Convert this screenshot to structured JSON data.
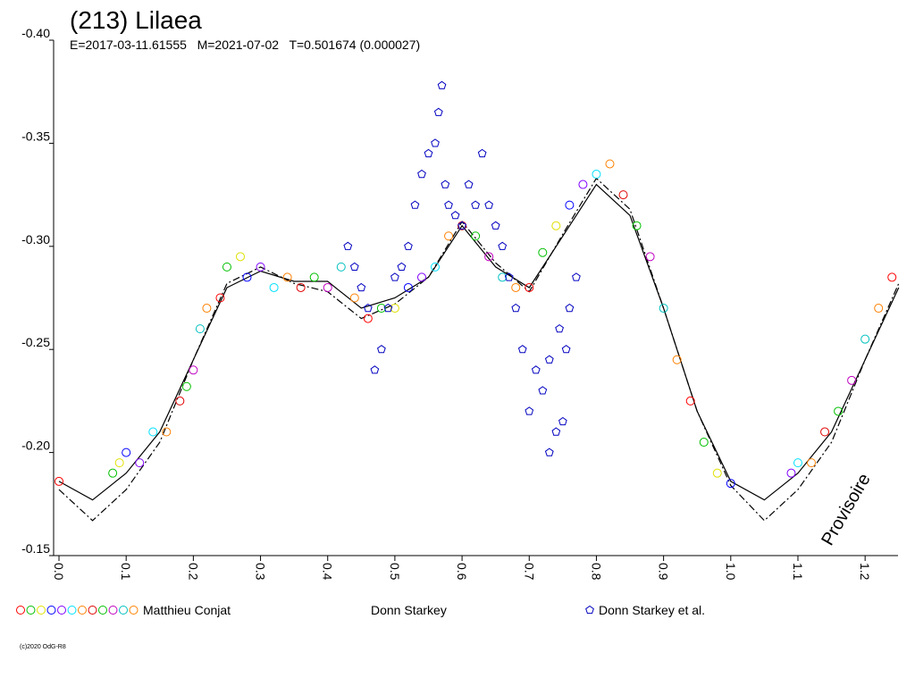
{
  "chart_data": {
    "type": "scatter",
    "title": "(213) Lilaea",
    "subtitle": "E=2017-03-11.61555   M=2021-07-02   T=0.501674 (0.000027)",
    "annotation": "Provisoire",
    "footer": "(c)2020 OdG-R8",
    "xlim": [
      -0.008,
      1.249
    ],
    "ylim": [
      -0.4,
      -0.15
    ],
    "y_reversed": true,
    "xticks": [
      {
        "value": 0.0,
        "label": "0.0"
      },
      0.1,
      0.2,
      0.3,
      0.4,
      0.5,
      0.6,
      0.7,
      0.8,
      0.9,
      {
        "value": 1.0,
        "label": "1.0"
      },
      1.1,
      1.2
    ],
    "yticks": [
      {
        "value": -0.4,
        "label": "-0.40"
      },
      -0.35,
      {
        "value": -0.3,
        "label": "-0.30"
      },
      -0.25,
      {
        "value": -0.2,
        "label": "-0.20"
      },
      -0.15
    ],
    "series": [
      {
        "name": "Matthieu Conjat",
        "marker_colors": [
          "#ff0000",
          "#00c000",
          "#e0e000",
          "#0000ff",
          "#8000ff",
          "#00e0ff",
          "#ff8000",
          "#e00000",
          "#00c000",
          "#c000c0",
          "#00c0c0",
          "#ff8000"
        ],
        "x": [
          0.0,
          0.08,
          0.09,
          0.1,
          0.12,
          0.14,
          0.16,
          0.18,
          0.19,
          0.2,
          0.21,
          0.22,
          0.24,
          0.25,
          0.27,
          0.28,
          0.3,
          0.32,
          0.34,
          0.36,
          0.38,
          0.4,
          0.42,
          0.44,
          0.46,
          0.48,
          0.5,
          0.52,
          0.54,
          0.56,
          0.58,
          0.6,
          0.62,
          0.64,
          0.66,
          0.68,
          0.7,
          0.72,
          0.74,
          0.76,
          0.78,
          0.8,
          0.82,
          0.84,
          0.86,
          0.88,
          0.9,
          0.92,
          0.94,
          0.96,
          0.98,
          1.0,
          1.09,
          1.1,
          1.12,
          1.14,
          1.16,
          1.18,
          1.2,
          1.22,
          1.24
        ],
        "values": [
          -0.186,
          -0.19,
          -0.195,
          -0.2,
          -0.195,
          -0.21,
          -0.21,
          -0.225,
          -0.232,
          -0.24,
          -0.26,
          -0.27,
          -0.275,
          -0.29,
          -0.295,
          -0.285,
          -0.29,
          -0.28,
          -0.285,
          -0.28,
          -0.285,
          -0.28,
          -0.29,
          -0.275,
          -0.265,
          -0.27,
          -0.27,
          -0.28,
          -0.285,
          -0.29,
          -0.305,
          -0.31,
          -0.305,
          -0.295,
          -0.285,
          -0.28,
          -0.28,
          -0.297,
          -0.31,
          -0.32,
          -0.33,
          -0.335,
          -0.34,
          -0.325,
          -0.31,
          -0.295,
          -0.27,
          -0.245,
          -0.225,
          -0.205,
          -0.19,
          -0.185,
          -0.19,
          -0.195,
          -0.195,
          -0.21,
          -0.22,
          -0.235,
          -0.255,
          -0.27,
          -0.285
        ]
      },
      {
        "name": "Donn Starkey",
        "x": [],
        "values": []
      },
      {
        "name": "Donn Starkey et al.",
        "color": "#0000c0",
        "x": [
          0.47,
          0.48,
          0.49,
          0.5,
          0.51,
          0.52,
          0.53,
          0.54,
          0.55,
          0.56,
          0.565,
          0.57,
          0.575,
          0.58,
          0.59,
          0.6,
          0.61,
          0.62,
          0.63,
          0.64,
          0.65,
          0.66,
          0.67,
          0.68,
          0.69,
          0.7,
          0.71,
          0.72,
          0.73,
          0.74,
          0.745,
          0.75,
          0.76,
          0.77,
          0.44,
          0.45,
          0.46,
          0.43,
          0.73,
          0.755
        ],
        "values": [
          -0.24,
          -0.25,
          -0.27,
          -0.285,
          -0.29,
          -0.3,
          -0.32,
          -0.335,
          -0.345,
          -0.35,
          -0.365,
          -0.378,
          -0.33,
          -0.32,
          -0.315,
          -0.31,
          -0.33,
          -0.32,
          -0.345,
          -0.32,
          -0.31,
          -0.3,
          -0.285,
          -0.27,
          -0.25,
          -0.22,
          -0.24,
          -0.23,
          -0.245,
          -0.21,
          -0.26,
          -0.215,
          -0.27,
          -0.285,
          -0.29,
          -0.28,
          -0.27,
          -0.3,
          -0.2,
          -0.25
        ]
      }
    ],
    "fits": [
      {
        "style": "solid",
        "color": "#000000",
        "x": [
          0.0,
          0.05,
          0.1,
          0.15,
          0.2,
          0.25,
          0.3,
          0.35,
          0.4,
          0.45,
          0.5,
          0.55,
          0.6,
          0.65,
          0.7,
          0.75,
          0.8,
          0.85,
          0.9,
          0.95,
          1.0,
          1.05,
          1.1,
          1.15,
          1.2,
          1.25
        ],
        "values": [
          -0.186,
          -0.177,
          -0.19,
          -0.21,
          -0.245,
          -0.28,
          -0.288,
          -0.283,
          -0.283,
          -0.27,
          -0.275,
          -0.285,
          -0.31,
          -0.29,
          -0.28,
          -0.305,
          -0.33,
          -0.315,
          -0.27,
          -0.22,
          -0.186,
          -0.177,
          -0.19,
          -0.21,
          -0.245,
          -0.28
        ]
      },
      {
        "style": "dashdot",
        "color": "#000000",
        "x": [
          0.0,
          0.05,
          0.1,
          0.15,
          0.2,
          0.25,
          0.3,
          0.35,
          0.4,
          0.45,
          0.5,
          0.55,
          0.6,
          0.65,
          0.7,
          0.75,
          0.8,
          0.85,
          0.9,
          0.95,
          1.0,
          1.05,
          1.1,
          1.15,
          1.2,
          1.25
        ],
        "values": [
          -0.182,
          -0.167,
          -0.182,
          -0.205,
          -0.245,
          -0.282,
          -0.29,
          -0.282,
          -0.278,
          -0.265,
          -0.272,
          -0.285,
          -0.312,
          -0.292,
          -0.278,
          -0.306,
          -0.333,
          -0.318,
          -0.27,
          -0.22,
          -0.184,
          -0.167,
          -0.182,
          -0.205,
          -0.245,
          -0.282
        ]
      }
    ]
  }
}
